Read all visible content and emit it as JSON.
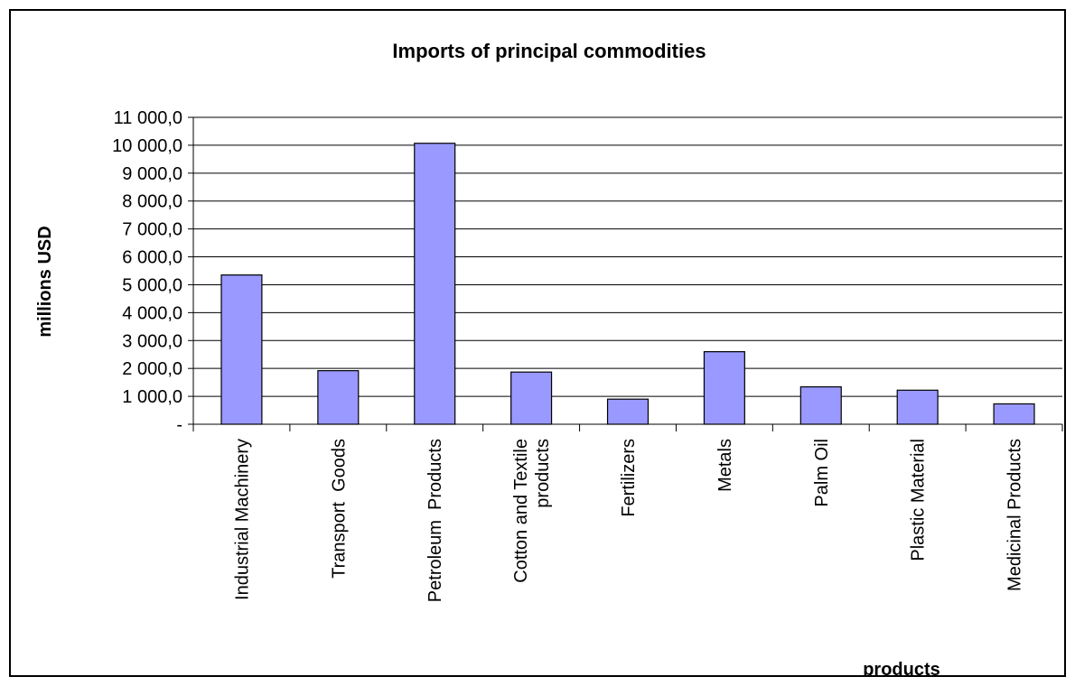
{
  "chart_data": {
    "type": "bar",
    "title": "Imports of principal commodities",
    "xlabel": "products",
    "ylabel": "millions USD",
    "ylim": [
      0,
      11000
    ],
    "ytick_step": 1000,
    "ytick_labels": [
      "-",
      "1 000,0",
      "2 000,0",
      "3 000,0",
      "4 000,0",
      "5 000,0",
      "6 000,0",
      "7 000,0",
      "8 000,0",
      "9 000,0",
      "10 000,0",
      "11 000,0"
    ],
    "grid": true,
    "legend": "none",
    "bar_color": "#9999ff",
    "categories": [
      [
        "Industrial Machinery"
      ],
      [
        "Transport  Goods"
      ],
      [
        "Petroleum  Products"
      ],
      [
        "Cotton and Textile",
        "products"
      ],
      [
        "Fertilizers"
      ],
      [
        "Metals"
      ],
      [
        "Palm Oil"
      ],
      [
        "Plastic Material"
      ],
      [
        "Medicinal Products"
      ]
    ],
    "values": [
      5350,
      1920,
      10070,
      1870,
      900,
      2600,
      1340,
      1220,
      730
    ]
  }
}
